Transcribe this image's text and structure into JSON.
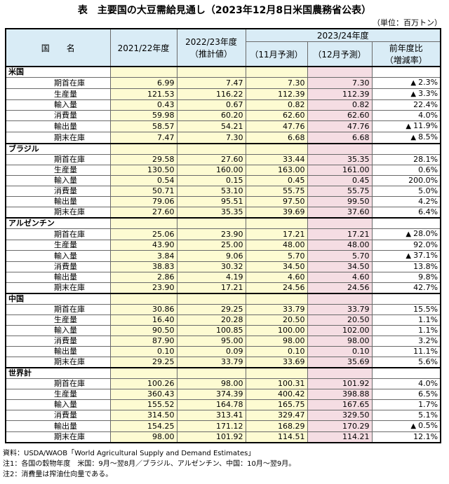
{
  "title": "表　主要国の大豆需給見通し（2023年12月8日米国農務省公表）",
  "unit": "（単位：百万トン）",
  "header": {
    "country": "国　　名",
    "col1": "2021/22年度",
    "col2_line1": "2022/23年度",
    "col2_line2": "（推計値）",
    "group": "2023/24年度",
    "col3": "（11月予測）",
    "col4": "（12月予測）",
    "col5_line1": "前年度比",
    "col5_line2": "（増減率）"
  },
  "sections": [
    {
      "name": "米国",
      "rows": [
        {
          "label": "期首在庫",
          "v": [
            "6.99",
            "7.47",
            "7.30",
            "7.30",
            "2.3%"
          ],
          "dec": true
        },
        {
          "label": "生産量",
          "v": [
            "121.53",
            "116.22",
            "112.39",
            "112.39",
            "3.3%"
          ],
          "dec": true
        },
        {
          "label": "輸入量",
          "v": [
            "0.43",
            "0.67",
            "0.82",
            "0.82",
            "22.4%"
          ],
          "dec": false
        },
        {
          "label": "消費量",
          "v": [
            "59.98",
            "60.20",
            "62.60",
            "62.60",
            "4.0%"
          ],
          "dec": false
        },
        {
          "label": "輸出量",
          "v": [
            "58.57",
            "54.21",
            "47.76",
            "47.76",
            "11.9%"
          ],
          "dec": true
        },
        {
          "label": "期末在庫",
          "v": [
            "7.47",
            "7.30",
            "6.68",
            "6.68",
            "8.5%"
          ],
          "dec": true
        }
      ]
    },
    {
      "name": "ブラジル",
      "rows": [
        {
          "label": "期首在庫",
          "v": [
            "29.58",
            "27.60",
            "33.44",
            "35.35",
            "28.1%"
          ],
          "dec": false
        },
        {
          "label": "生産量",
          "v": [
            "130.50",
            "160.00",
            "163.00",
            "161.00",
            "0.6%"
          ],
          "dec": false
        },
        {
          "label": "輸入量",
          "v": [
            "0.54",
            "0.15",
            "0.45",
            "0.45",
            "200.0%"
          ],
          "dec": false
        },
        {
          "label": "消費量",
          "v": [
            "50.71",
            "53.10",
            "55.75",
            "55.75",
            "5.0%"
          ],
          "dec": false
        },
        {
          "label": "輸出量",
          "v": [
            "79.06",
            "95.51",
            "97.50",
            "99.50",
            "4.2%"
          ],
          "dec": false
        },
        {
          "label": "期末在庫",
          "v": [
            "27.60",
            "35.35",
            "39.69",
            "37.60",
            "6.4%"
          ],
          "dec": false
        }
      ]
    },
    {
      "name": "アルゼンチン",
      "rows": [
        {
          "label": "期首在庫",
          "v": [
            "25.06",
            "23.90",
            "17.21",
            "17.21",
            "28.0%"
          ],
          "dec": true
        },
        {
          "label": "生産量",
          "v": [
            "43.90",
            "25.00",
            "48.00",
            "48.00",
            "92.0%"
          ],
          "dec": false
        },
        {
          "label": "輸入量",
          "v": [
            "3.84",
            "9.06",
            "5.70",
            "5.70",
            "37.1%"
          ],
          "dec": true
        },
        {
          "label": "消費量",
          "v": [
            "38.83",
            "30.32",
            "34.50",
            "34.50",
            "13.8%"
          ],
          "dec": false
        },
        {
          "label": "輸出量",
          "v": [
            "2.86",
            "4.19",
            "4.60",
            "4.60",
            "9.8%"
          ],
          "dec": false
        },
        {
          "label": "期末在庫",
          "v": [
            "23.90",
            "17.21",
            "24.56",
            "24.56",
            "42.7%"
          ],
          "dec": false
        }
      ]
    },
    {
      "name": "中国",
      "rows": [
        {
          "label": "期首在庫",
          "v": [
            "30.86",
            "29.25",
            "33.79",
            "33.79",
            "15.5%"
          ],
          "dec": false
        },
        {
          "label": "生産量",
          "v": [
            "16.40",
            "20.28",
            "20.50",
            "20.50",
            "1.1%"
          ],
          "dec": false
        },
        {
          "label": "輸入量",
          "v": [
            "90.50",
            "100.85",
            "100.00",
            "102.00",
            "1.1%"
          ],
          "dec": false
        },
        {
          "label": "消費量",
          "v": [
            "87.90",
            "95.00",
            "98.00",
            "98.00",
            "3.2%"
          ],
          "dec": false
        },
        {
          "label": "輸出量",
          "v": [
            "0.10",
            "0.09",
            "0.10",
            "0.10",
            "11.1%"
          ],
          "dec": false
        },
        {
          "label": "期末在庫",
          "v": [
            "29.25",
            "33.79",
            "33.69",
            "35.69",
            "5.6%"
          ],
          "dec": false
        }
      ]
    },
    {
      "name": "世界計",
      "rows": [
        {
          "label": "期首在庫",
          "v": [
            "100.26",
            "98.00",
            "100.31",
            "101.92",
            "4.0%"
          ],
          "dec": false
        },
        {
          "label": "生産量",
          "v": [
            "360.43",
            "374.39",
            "400.42",
            "398.88",
            "6.5%"
          ],
          "dec": false
        },
        {
          "label": "輸入量",
          "v": [
            "155.52",
            "164.78",
            "165.75",
            "167.65",
            "1.7%"
          ],
          "dec": false
        },
        {
          "label": "消費量",
          "v": [
            "314.50",
            "313.41",
            "329.47",
            "329.50",
            "5.1%"
          ],
          "dec": false
        },
        {
          "label": "輸出量",
          "v": [
            "154.25",
            "171.12",
            "168.29",
            "170.29",
            "0.5%"
          ],
          "dec": true
        },
        {
          "label": "期末在庫",
          "v": [
            "98.00",
            "101.92",
            "114.51",
            "114.21",
            "12.1%"
          ],
          "dec": false
        }
      ]
    }
  ],
  "decrease_symbol": "▲",
  "notes": [
    "資料：USDA/WAOB「World Agricultural Supply and Demand Estimates」",
    "注1：各国の穀物年度　米国：9月～翌8月／ブラジル、アルゼンチン、中国：10月～翌9月。",
    "注2：消費量は搾油仕向量である。"
  ],
  "colors": {
    "header_bg": "#d9ecf6",
    "past_years_bg": "#fdfbd2",
    "december_forecast_bg": "#f5dde3",
    "flag_marker": "#2e8b2e"
  }
}
